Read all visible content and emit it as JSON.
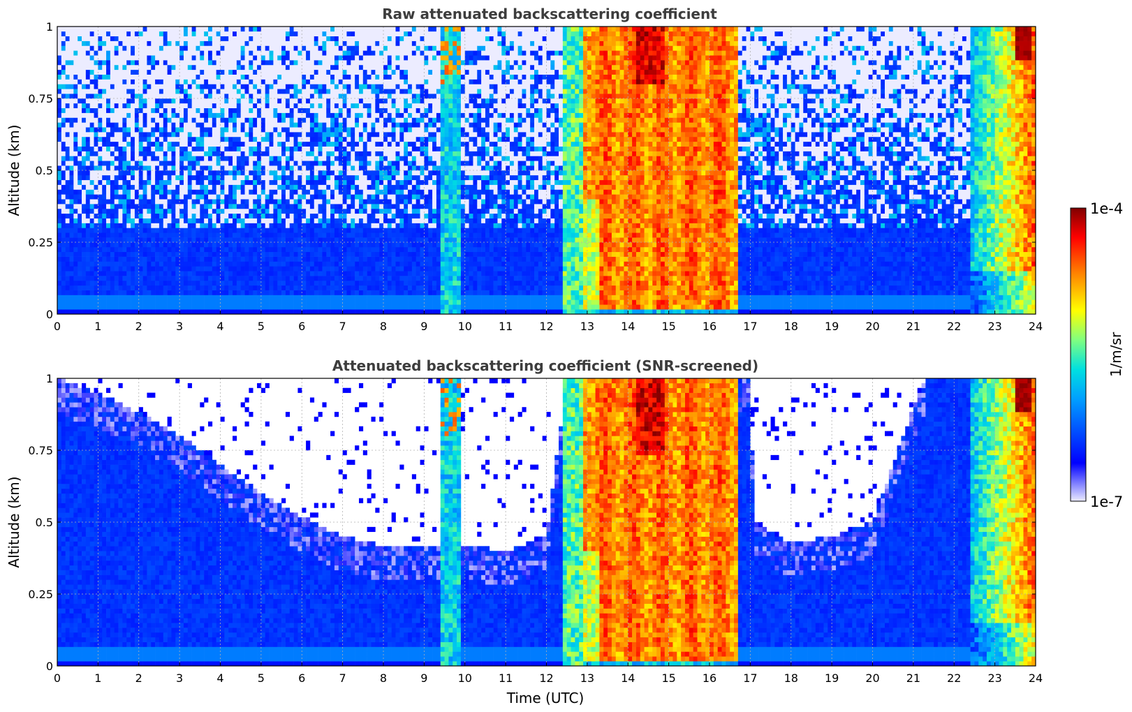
{
  "chart_data": [
    {
      "type": "heatmap",
      "title": "Raw attenuated backscattering coefficient",
      "xlabel": "",
      "ylabel": "Altitude (km)",
      "xlim": [
        0,
        24
      ],
      "ylim": [
        0,
        1
      ],
      "x_ticks": [
        "0",
        "1",
        "2",
        "3",
        "4",
        "5",
        "6",
        "7",
        "8",
        "9",
        "10",
        "11",
        "12",
        "13",
        "14",
        "15",
        "16",
        "17",
        "18",
        "19",
        "20",
        "21",
        "22",
        "23",
        "24"
      ],
      "y_ticks": [
        "0",
        "0.25",
        "0.5",
        "0.75",
        "1"
      ],
      "grid": true,
      "screened": false,
      "features": [
        {
          "x": [
            9.45,
            9.9
          ],
          "y": [
            0.0,
            1.0
          ],
          "level": "cyan to orange plumes"
        },
        {
          "x": [
            12.5,
            12.9
          ],
          "y": [
            0.0,
            1.0
          ],
          "level": "cyan / green"
        },
        {
          "x": [
            12.9,
            16.7
          ],
          "y": [
            0.02,
            1.0
          ],
          "level": "orange / red, dark red near 14.2-14.9 above 0.8 km"
        },
        {
          "x": [
            22.5,
            24.0
          ],
          "y": [
            0.1,
            1.0
          ],
          "level": "green to red, dark red near 23.6 above 0.9 km"
        }
      ]
    },
    {
      "type": "heatmap",
      "title": "Attenuated backscattering coefficient (SNR-screened)",
      "xlabel": "Time (UTC)",
      "ylabel": "Altitude (km)",
      "xlim": [
        0,
        24
      ],
      "ylim": [
        0,
        1
      ],
      "x_ticks": [
        "0",
        "1",
        "2",
        "3",
        "4",
        "5",
        "6",
        "7",
        "8",
        "9",
        "10",
        "11",
        "12",
        "13",
        "14",
        "15",
        "16",
        "17",
        "18",
        "19",
        "20",
        "21",
        "22",
        "23",
        "24"
      ],
      "y_ticks": [
        "0",
        "0.25",
        "0.5",
        "0.75",
        "1"
      ],
      "grid": true,
      "screened": true,
      "screen_top_km": [
        [
          0,
          1.0
        ],
        [
          1,
          0.95
        ],
        [
          2,
          0.88
        ],
        [
          3,
          0.8
        ],
        [
          4,
          0.7
        ],
        [
          5,
          0.6
        ],
        [
          6,
          0.52
        ],
        [
          7,
          0.45
        ],
        [
          8,
          0.42
        ],
        [
          9,
          0.42
        ],
        [
          10,
          0.42
        ],
        [
          11,
          0.4
        ],
        [
          12,
          0.45
        ],
        [
          12.5,
          1.0
        ],
        [
          17,
          1.0
        ],
        [
          17.1,
          0.5
        ],
        [
          18,
          0.43
        ],
        [
          19,
          0.45
        ],
        [
          20,
          0.5
        ],
        [
          20.5,
          0.7
        ],
        [
          21,
          0.9
        ],
        [
          21.3,
          1.0
        ],
        [
          24,
          1.0
        ]
      ],
      "features": [
        {
          "x": [
            9.45,
            9.9
          ],
          "y": [
            0.0,
            1.0
          ],
          "level": "cyan to orange plumes"
        },
        {
          "x": [
            12.5,
            12.9
          ],
          "y": [
            0.0,
            1.0
          ],
          "level": "cyan / green"
        },
        {
          "x": [
            12.9,
            16.7
          ],
          "y": [
            0.02,
            1.0
          ],
          "level": "orange / red, dark red near 14.2-14.9 above 0.75 km"
        },
        {
          "x": [
            22.5,
            24.0
          ],
          "y": [
            0.1,
            1.0
          ],
          "level": "green to red, dark red near 23.6 above 0.9 km"
        }
      ]
    }
  ],
  "colorbar": {
    "label": "1/m/sr",
    "max_label": "1e-4",
    "min_label": "1e-7",
    "scale": "log",
    "colormap": "jet",
    "min_color": "#e8e8ff",
    "max_color": "#800000"
  }
}
